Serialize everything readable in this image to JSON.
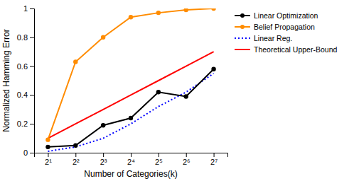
{
  "chart_data": {
    "type": "line",
    "xlabel": "Number of Categories(k)",
    "ylabel": "Normalized Hamming Error",
    "categories": [
      "2¹",
      "2²",
      "2³",
      "2⁴",
      "2⁵",
      "2⁶",
      "2⁷"
    ],
    "series": [
      {
        "name": "Linear Optimization",
        "color": "#000000",
        "line_style": "solid",
        "marker": "circle",
        "values": [
          0.04,
          0.05,
          0.19,
          0.24,
          0.42,
          0.39,
          0.58
        ]
      },
      {
        "name": "Belief Propagation",
        "color": "#FF8C00",
        "line_style": "solid",
        "marker": "circle",
        "values": [
          0.09,
          0.63,
          0.8,
          0.94,
          0.97,
          0.99,
          1.0
        ]
      },
      {
        "name": "Linear Reg.",
        "color": "#0000FF",
        "line_style": "dotted",
        "marker": "none",
        "values": [
          0.01,
          0.04,
          0.1,
          0.2,
          0.32,
          0.42,
          0.55
        ]
      },
      {
        "name": "Theoretical Upper-Bound",
        "color": "#FF0000",
        "line_style": "solid",
        "marker": "none",
        "values": [
          0.1,
          0.2,
          0.3,
          0.4,
          0.5,
          0.6,
          0.7
        ]
      }
    ],
    "ylim": [
      0,
      1
    ],
    "yticks": [
      0,
      0.2,
      0.4,
      0.6,
      0.8,
      1
    ],
    "grid": false,
    "legend": "right"
  }
}
